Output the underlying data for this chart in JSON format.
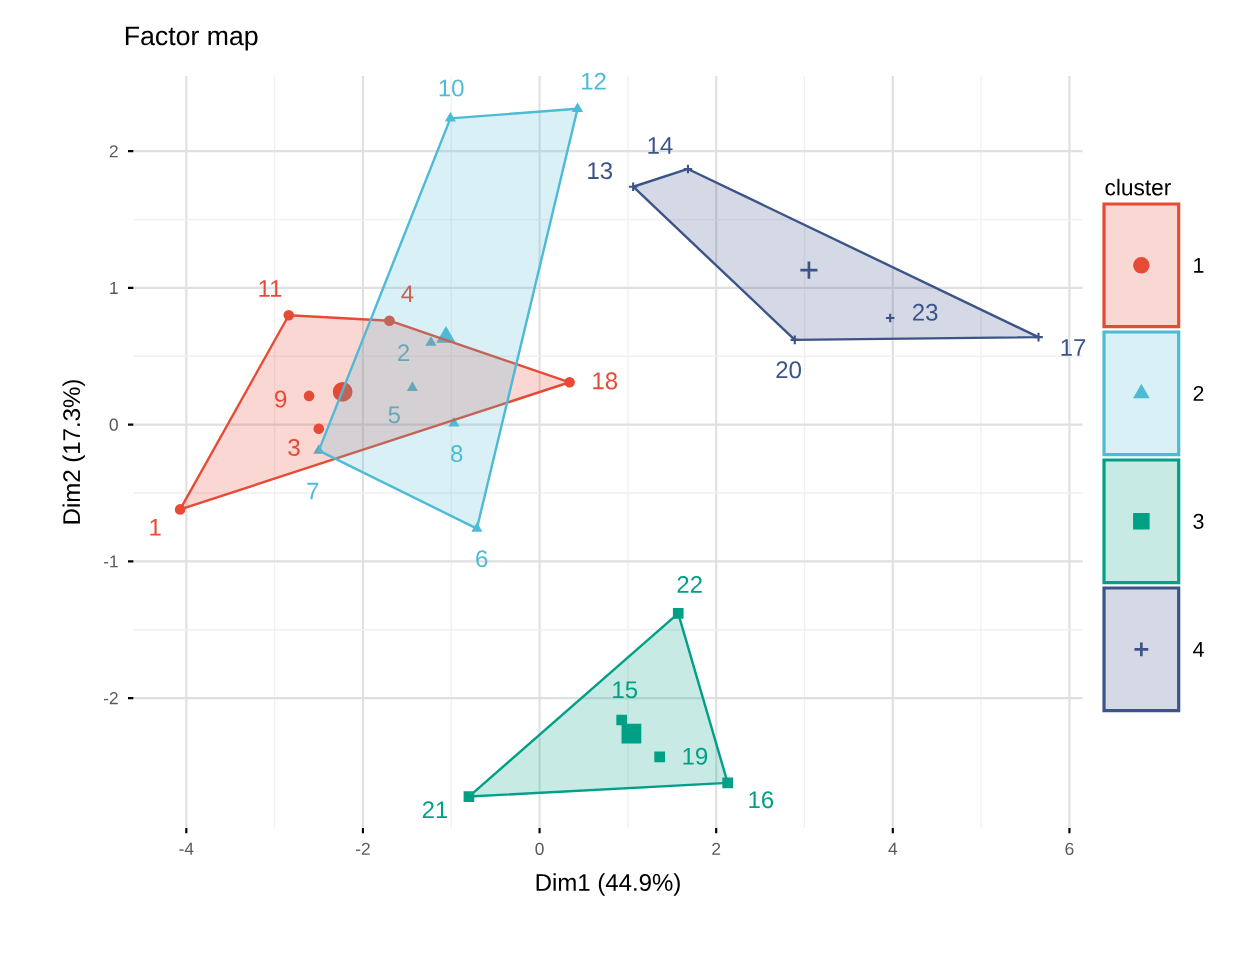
{
  "chart_data": {
    "type": "scatter",
    "title": "Factor map",
    "xlabel": "Dim1 (44.9%)",
    "ylabel": "Dim2 (17.3%)",
    "legend_title": "cluster",
    "legend": "right",
    "grid": true,
    "xlim": [
      -4.6,
      6.15
    ],
    "ylim": [
      -2.95,
      2.55
    ],
    "xticks": [
      -4,
      -2,
      0,
      2,
      4,
      6
    ],
    "yticks": [
      -2,
      -1,
      0,
      1,
      2
    ],
    "series": [
      {
        "name": "1",
        "color": "#e64b35",
        "marker": "circle",
        "x": [
          -4.07,
          -2.84,
          -1.7,
          0.34,
          -2.61,
          -2.5
        ],
        "values": [
          -0.62,
          0.8,
          0.76,
          0.31,
          0.21,
          -0.03
        ]
      },
      {
        "name": "2",
        "color": "#4dbbd5",
        "marker": "triangle",
        "x": [
          -1.01,
          0.43,
          -0.71,
          -2.5,
          -1.23,
          -1.44,
          -0.97
        ],
        "values": [
          2.24,
          2.31,
          -0.76,
          -0.19,
          0.6,
          0.27,
          0.01
        ]
      },
      {
        "name": "3",
        "color": "#00a087",
        "marker": "square",
        "x": [
          1.57,
          2.13,
          -0.8,
          0.93,
          1.36
        ],
        "values": [
          -1.38,
          -2.62,
          -2.72,
          -2.16,
          -2.43
        ]
      },
      {
        "name": "4",
        "color": "#3c5488",
        "marker": "cross",
        "x": [
          1.06,
          1.68,
          2.89,
          5.65,
          3.97
        ],
        "values": [
          1.74,
          1.87,
          0.62,
          0.64,
          0.78
        ]
      },
      {
        "color": "#e64b35",
        "marker": "circle",
        "x": [
          -2.23
        ],
        "values": [
          0.24
        ]
      },
      {
        "color": "#4dbbd5",
        "marker": "triangle",
        "x": [
          -1.06
        ],
        "values": [
          0.64
        ]
      },
      {
        "color": "#00a087",
        "marker": "square",
        "x": [
          1.04
        ],
        "values": [
          -2.26
        ]
      },
      {
        "color": "#3c5488",
        "marker": "cross",
        "x": [
          3.05
        ],
        "values": [
          1.13
        ]
      }
    ],
    "annotations": [
      {
        "text": "1",
        "x": -4.07,
        "y": -0.62
      },
      {
        "text": "11",
        "x": -2.84,
        "y": 0.8
      },
      {
        "text": "4",
        "x": -1.7,
        "y": 0.76
      },
      {
        "text": "18",
        "x": 0.34,
        "y": 0.31
      },
      {
        "text": "9",
        "x": -2.61,
        "y": 0.21
      },
      {
        "text": "3",
        "x": -2.5,
        "y": -0.03
      },
      {
        "text": "10",
        "x": -1.01,
        "y": 2.24
      },
      {
        "text": "12",
        "x": 0.43,
        "y": 2.31
      },
      {
        "text": "6",
        "x": -0.71,
        "y": -0.76
      },
      {
        "text": "7",
        "x": -2.5,
        "y": -0.19
      },
      {
        "text": "2",
        "x": -1.23,
        "y": 0.6
      },
      {
        "text": "5",
        "x": -1.44,
        "y": 0.27
      },
      {
        "text": "8",
        "x": -0.97,
        "y": 0.01
      },
      {
        "text": "22",
        "x": 1.57,
        "y": -1.38
      },
      {
        "text": "16",
        "x": 2.13,
        "y": -2.62
      },
      {
        "text": "21",
        "x": -0.8,
        "y": -2.72
      },
      {
        "text": "15",
        "x": 0.93,
        "y": -2.16
      },
      {
        "text": "19",
        "x": 1.36,
        "y": -2.43
      },
      {
        "text": "13",
        "x": 1.06,
        "y": 1.74
      },
      {
        "text": "14",
        "x": 1.68,
        "y": 1.87
      },
      {
        "text": "20",
        "x": 2.89,
        "y": 0.62
      },
      {
        "text": "17",
        "x": 5.65,
        "y": 0.64
      },
      {
        "text": "23",
        "x": 3.97,
        "y": 0.78
      }
    ]
  }
}
